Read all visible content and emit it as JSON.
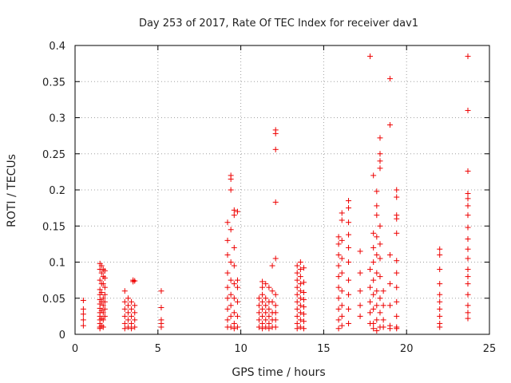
{
  "chart_data": {
    "type": "scatter",
    "title": "Day 253 of 2017, Rate Of TEC Index for receiver dav1",
    "xlabel": "GPS time / hours",
    "ylabel": "ROTI / TECUs",
    "xlim": [
      0,
      25
    ],
    "ylim": [
      0,
      0.4
    ],
    "xticks": [
      "0",
      "5",
      "10",
      "15",
      "20",
      "25"
    ],
    "yticks": [
      "0",
      "0.05",
      "0.1",
      "0.15",
      "0.2",
      "0.25",
      "0.3",
      "0.35",
      "0.4"
    ],
    "grid": true,
    "marker": "+",
    "color": "#ee0000",
    "series": [
      {
        "points": [
          [
            0.5,
            0.047
          ],
          [
            0.5,
            0.035
          ],
          [
            0.5,
            0.028
          ],
          [
            0.5,
            0.02
          ],
          [
            0.5,
            0.012
          ],
          [
            1.5,
            0.098
          ],
          [
            1.5,
            0.09
          ],
          [
            1.5,
            0.075
          ],
          [
            1.5,
            0.062
          ],
          [
            1.5,
            0.055
          ],
          [
            1.5,
            0.048
          ],
          [
            1.5,
            0.042
          ],
          [
            1.5,
            0.036
          ],
          [
            1.5,
            0.03
          ],
          [
            1.5,
            0.025
          ],
          [
            1.5,
            0.02
          ],
          [
            1.5,
            0.015
          ],
          [
            1.5,
            0.01
          ],
          [
            1.5,
            0.008
          ],
          [
            1.6,
            0.095
          ],
          [
            1.6,
            0.085
          ],
          [
            1.6,
            0.07
          ],
          [
            1.6,
            0.058
          ],
          [
            1.6,
            0.045
          ],
          [
            1.6,
            0.033
          ],
          [
            1.6,
            0.022
          ],
          [
            1.6,
            0.012
          ],
          [
            1.7,
            0.09
          ],
          [
            1.7,
            0.08
          ],
          [
            1.7,
            0.07
          ],
          [
            1.7,
            0.05
          ],
          [
            1.7,
            0.04
          ],
          [
            1.7,
            0.03
          ],
          [
            1.7,
            0.02
          ],
          [
            1.7,
            0.01
          ],
          [
            1.8,
            0.088
          ],
          [
            1.8,
            0.078
          ],
          [
            1.8,
            0.065
          ],
          [
            1.8,
            0.055
          ],
          [
            1.8,
            0.045
          ],
          [
            1.8,
            0.035
          ],
          [
            1.8,
            0.025
          ],
          [
            3.0,
            0.06
          ],
          [
            3.0,
            0.045
          ],
          [
            3.0,
            0.035
          ],
          [
            3.0,
            0.025
          ],
          [
            3.0,
            0.015
          ],
          [
            3.0,
            0.008
          ],
          [
            3.2,
            0.05
          ],
          [
            3.2,
            0.04
          ],
          [
            3.2,
            0.03
          ],
          [
            3.2,
            0.02
          ],
          [
            3.2,
            0.01
          ],
          [
            3.4,
            0.045
          ],
          [
            3.4,
            0.035
          ],
          [
            3.4,
            0.025
          ],
          [
            3.4,
            0.015
          ],
          [
            3.4,
            0.008
          ],
          [
            3.5,
            0.075
          ],
          [
            3.5,
            0.073
          ],
          [
            3.6,
            0.074
          ],
          [
            3.6,
            0.04
          ],
          [
            3.6,
            0.03
          ],
          [
            3.6,
            0.02
          ],
          [
            3.6,
            0.01
          ],
          [
            5.2,
            0.06
          ],
          [
            5.2,
            0.037
          ],
          [
            5.2,
            0.02
          ],
          [
            5.2,
            0.015
          ],
          [
            5.2,
            0.01
          ],
          [
            9.2,
            0.155
          ],
          [
            9.2,
            0.13
          ],
          [
            9.2,
            0.11
          ],
          [
            9.2,
            0.085
          ],
          [
            9.2,
            0.065
          ],
          [
            9.2,
            0.05
          ],
          [
            9.2,
            0.035
          ],
          [
            9.2,
            0.02
          ],
          [
            9.2,
            0.01
          ],
          [
            9.4,
            0.22
          ],
          [
            9.4,
            0.215
          ],
          [
            9.4,
            0.2
          ],
          [
            9.4,
            0.145
          ],
          [
            9.4,
            0.1
          ],
          [
            9.4,
            0.075
          ],
          [
            9.4,
            0.055
          ],
          [
            9.4,
            0.04
          ],
          [
            9.4,
            0.025
          ],
          [
            9.4,
            0.01
          ],
          [
            9.6,
            0.172
          ],
          [
            9.6,
            0.165
          ],
          [
            9.6,
            0.12
          ],
          [
            9.6,
            0.095
          ],
          [
            9.6,
            0.07
          ],
          [
            9.6,
            0.05
          ],
          [
            9.6,
            0.03
          ],
          [
            9.6,
            0.015
          ],
          [
            9.6,
            0.008
          ],
          [
            9.8,
            0.17
          ],
          [
            9.8,
            0.075
          ],
          [
            9.8,
            0.065
          ],
          [
            9.8,
            0.045
          ],
          [
            9.8,
            0.025
          ],
          [
            9.8,
            0.01
          ],
          [
            11.1,
            0.05
          ],
          [
            11.1,
            0.04
          ],
          [
            11.1,
            0.03
          ],
          [
            11.1,
            0.02
          ],
          [
            11.1,
            0.01
          ],
          [
            11.3,
            0.073
          ],
          [
            11.3,
            0.065
          ],
          [
            11.3,
            0.055
          ],
          [
            11.3,
            0.045
          ],
          [
            11.3,
            0.035
          ],
          [
            11.3,
            0.025
          ],
          [
            11.3,
            0.015
          ],
          [
            11.3,
            0.008
          ],
          [
            11.5,
            0.07
          ],
          [
            11.5,
            0.05
          ],
          [
            11.5,
            0.04
          ],
          [
            11.5,
            0.03
          ],
          [
            11.5,
            0.02
          ],
          [
            11.5,
            0.01
          ],
          [
            11.7,
            0.065
          ],
          [
            11.7,
            0.045
          ],
          [
            11.7,
            0.035
          ],
          [
            11.7,
            0.025
          ],
          [
            11.7,
            0.015
          ],
          [
            11.7,
            0.008
          ],
          [
            11.9,
            0.095
          ],
          [
            11.9,
            0.06
          ],
          [
            11.9,
            0.045
          ],
          [
            11.9,
            0.03
          ],
          [
            11.9,
            0.02
          ],
          [
            11.9,
            0.01
          ],
          [
            12.1,
            0.283
          ],
          [
            12.1,
            0.278
          ],
          [
            12.1,
            0.256
          ],
          [
            12.1,
            0.183
          ],
          [
            12.1,
            0.105
          ],
          [
            12.1,
            0.055
          ],
          [
            12.1,
            0.04
          ],
          [
            12.1,
            0.03
          ],
          [
            12.1,
            0.02
          ],
          [
            12.1,
            0.01
          ],
          [
            13.4,
            0.095
          ],
          [
            13.4,
            0.085
          ],
          [
            13.4,
            0.075
          ],
          [
            13.4,
            0.065
          ],
          [
            13.4,
            0.055
          ],
          [
            13.4,
            0.045
          ],
          [
            13.4,
            0.035
          ],
          [
            13.4,
            0.025
          ],
          [
            13.4,
            0.015
          ],
          [
            13.4,
            0.008
          ],
          [
            13.6,
            0.1
          ],
          [
            13.6,
            0.09
          ],
          [
            13.6,
            0.08
          ],
          [
            13.6,
            0.07
          ],
          [
            13.6,
            0.06
          ],
          [
            13.6,
            0.05
          ],
          [
            13.6,
            0.04
          ],
          [
            13.6,
            0.03
          ],
          [
            13.6,
            0.02
          ],
          [
            13.6,
            0.01
          ],
          [
            13.8,
            0.092
          ],
          [
            13.8,
            0.072
          ],
          [
            13.8,
            0.058
          ],
          [
            13.8,
            0.048
          ],
          [
            13.8,
            0.038
          ],
          [
            13.8,
            0.028
          ],
          [
            13.8,
            0.018
          ],
          [
            13.8,
            0.008
          ],
          [
            15.9,
            0.135
          ],
          [
            15.9,
            0.125
          ],
          [
            15.9,
            0.11
          ],
          [
            15.9,
            0.095
          ],
          [
            15.9,
            0.08
          ],
          [
            15.9,
            0.065
          ],
          [
            15.9,
            0.05
          ],
          [
            15.9,
            0.035
          ],
          [
            15.9,
            0.02
          ],
          [
            15.9,
            0.008
          ],
          [
            16.1,
            0.168
          ],
          [
            16.1,
            0.158
          ],
          [
            16.1,
            0.13
          ],
          [
            16.1,
            0.105
          ],
          [
            16.1,
            0.085
          ],
          [
            16.1,
            0.06
          ],
          [
            16.1,
            0.04
          ],
          [
            16.1,
            0.025
          ],
          [
            16.1,
            0.012
          ],
          [
            16.5,
            0.185
          ],
          [
            16.5,
            0.175
          ],
          [
            16.5,
            0.155
          ],
          [
            16.5,
            0.138
          ],
          [
            16.5,
            0.12
          ],
          [
            16.5,
            0.1
          ],
          [
            16.5,
            0.075
          ],
          [
            16.5,
            0.055
          ],
          [
            16.5,
            0.035
          ],
          [
            16.5,
            0.015
          ],
          [
            17.2,
            0.115
          ],
          [
            17.2,
            0.085
          ],
          [
            17.2,
            0.06
          ],
          [
            17.2,
            0.04
          ],
          [
            17.2,
            0.025
          ],
          [
            17.8,
            0.385
          ],
          [
            17.8,
            0.09
          ],
          [
            17.8,
            0.065
          ],
          [
            17.8,
            0.045
          ],
          [
            17.8,
            0.03
          ],
          [
            17.8,
            0.015
          ],
          [
            18.0,
            0.22
          ],
          [
            18.0,
            0.14
          ],
          [
            18.0,
            0.12
          ],
          [
            18.0,
            0.1
          ],
          [
            18.0,
            0.075
          ],
          [
            18.0,
            0.055
          ],
          [
            18.0,
            0.035
          ],
          [
            18.0,
            0.015
          ],
          [
            18.0,
            0.008
          ],
          [
            18.2,
            0.198
          ],
          [
            18.2,
            0.178
          ],
          [
            18.2,
            0.165
          ],
          [
            18.2,
            0.135
          ],
          [
            18.2,
            0.11
          ],
          [
            18.2,
            0.085
          ],
          [
            18.2,
            0.06
          ],
          [
            18.2,
            0.04
          ],
          [
            18.2,
            0.02
          ],
          [
            18.2,
            0.005
          ],
          [
            18.4,
            0.272
          ],
          [
            18.4,
            0.25
          ],
          [
            18.4,
            0.24
          ],
          [
            18.4,
            0.23
          ],
          [
            18.4,
            0.15
          ],
          [
            18.4,
            0.125
          ],
          [
            18.4,
            0.105
          ],
          [
            18.4,
            0.08
          ],
          [
            18.4,
            0.05
          ],
          [
            18.4,
            0.03
          ],
          [
            18.4,
            0.01
          ],
          [
            18.6,
            0.06
          ],
          [
            18.6,
            0.04
          ],
          [
            18.6,
            0.02
          ],
          [
            18.6,
            0.01
          ],
          [
            19.0,
            0.354
          ],
          [
            19.0,
            0.29
          ],
          [
            19.0,
            0.11
          ],
          [
            19.0,
            0.07
          ],
          [
            19.0,
            0.04
          ],
          [
            19.0,
            0.012
          ],
          [
            19.0,
            0.008
          ],
          [
            19.4,
            0.2
          ],
          [
            19.4,
            0.19
          ],
          [
            19.4,
            0.165
          ],
          [
            19.4,
            0.16
          ],
          [
            19.4,
            0.14
          ],
          [
            19.4,
            0.102
          ],
          [
            19.4,
            0.085
          ],
          [
            19.4,
            0.065
          ],
          [
            19.4,
            0.045
          ],
          [
            19.4,
            0.025
          ],
          [
            19.4,
            0.01
          ],
          [
            19.4,
            0.008
          ],
          [
            22.0,
            0.118
          ],
          [
            22.0,
            0.11
          ],
          [
            22.0,
            0.09
          ],
          [
            22.0,
            0.07
          ],
          [
            22.0,
            0.055
          ],
          [
            22.0,
            0.045
          ],
          [
            22.0,
            0.035
          ],
          [
            22.0,
            0.025
          ],
          [
            22.0,
            0.015
          ],
          [
            22.0,
            0.01
          ],
          [
            23.7,
            0.385
          ],
          [
            23.7,
            0.31
          ],
          [
            23.7,
            0.226
          ],
          [
            23.7,
            0.195
          ],
          [
            23.7,
            0.188
          ],
          [
            23.7,
            0.178
          ],
          [
            23.7,
            0.165
          ],
          [
            23.7,
            0.148
          ],
          [
            23.7,
            0.132
          ],
          [
            23.7,
            0.118
          ],
          [
            23.7,
            0.105
          ],
          [
            23.7,
            0.09
          ],
          [
            23.7,
            0.08
          ],
          [
            23.7,
            0.07
          ],
          [
            23.7,
            0.055
          ],
          [
            23.7,
            0.04
          ],
          [
            23.7,
            0.03
          ],
          [
            23.7,
            0.022
          ]
        ]
      }
    ]
  }
}
